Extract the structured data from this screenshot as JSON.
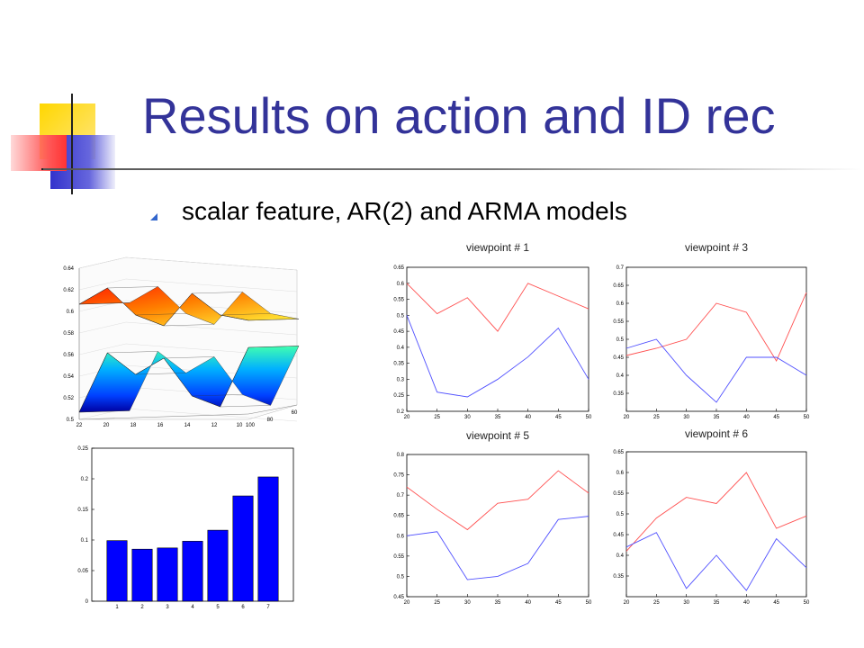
{
  "slide": {
    "title": "Results on action and ID rec",
    "bullet": "scalar feature, AR(2) and ARMA models"
  },
  "colors": {
    "title": "#333399",
    "red_series": "#ff5050",
    "blue_series": "#5050ff",
    "bar": "#0000ff"
  },
  "chart_data": [
    {
      "type": "surface",
      "x_ticks": [
        "22",
        "20",
        "18",
        "16",
        "14",
        "12",
        "10",
        "100"
      ],
      "y_ticks": [
        "80",
        "60"
      ],
      "z_ticks": [
        "0.5",
        "0.52",
        "0.54",
        "0.56",
        "0.58",
        "0.6",
        "0.62",
        "0.64"
      ],
      "zlim": [
        0.5,
        0.64
      ],
      "x": [
        22,
        20,
        18,
        16,
        14,
        12,
        10
      ],
      "upper_surface": [
        0.61,
        0.625,
        0.6,
        0.59,
        0.62,
        0.6,
        0.595
      ],
      "lower_surface": [
        0.51,
        0.565,
        0.545,
        0.56,
        0.525,
        0.515,
        0.57
      ],
      "grid": true
    },
    {
      "type": "bar",
      "categories": [
        "1",
        "2",
        "3",
        "4",
        "5",
        "6",
        "7"
      ],
      "values": [
        0.099,
        0.085,
        0.087,
        0.098,
        0.116,
        0.172,
        0.203
      ],
      "ylim": [
        0,
        0.25
      ],
      "y_ticks": [
        "0",
        "0.05",
        "0.1",
        "0.15",
        "0.2",
        "0.25"
      ]
    },
    {
      "type": "line",
      "title": "viewpoint # 1",
      "x": [
        20,
        25,
        30,
        35,
        40,
        45,
        50
      ],
      "xlim": [
        20,
        50
      ],
      "ylim": [
        0.2,
        0.65
      ],
      "x_ticks": [
        "20",
        "25",
        "30",
        "35",
        "40",
        "45",
        "50"
      ],
      "y_ticks": [
        "0.2",
        "0.25",
        "0.3",
        "0.35",
        "0.4",
        "0.45",
        "0.5",
        "0.55",
        "0.6",
        "0.65"
      ],
      "series": [
        {
          "color": "#ff5050",
          "values": [
            0.6,
            0.505,
            0.555,
            0.45,
            0.6,
            0.56,
            0.52
          ]
        },
        {
          "color": "#5050ff",
          "values": [
            0.5,
            0.26,
            0.245,
            0.3,
            0.37,
            0.46,
            0.3
          ]
        }
      ]
    },
    {
      "type": "line",
      "title": "viewpoint # 3",
      "x": [
        20,
        25,
        30,
        35,
        40,
        45,
        50
      ],
      "xlim": [
        20,
        50
      ],
      "ylim": [
        0.3,
        0.7
      ],
      "x_ticks": [
        "20",
        "25",
        "30",
        "35",
        "40",
        "45",
        "50"
      ],
      "y_ticks": [
        "0.35",
        "0.4",
        "0.45",
        "0.5",
        "0.55",
        "0.6",
        "0.65",
        "0.7"
      ],
      "series": [
        {
          "color": "#ff5050",
          "values": [
            0.455,
            0.475,
            0.5,
            0.6,
            0.575,
            0.44,
            0.63
          ]
        },
        {
          "color": "#5050ff",
          "values": [
            0.475,
            0.5,
            0.4,
            0.325,
            0.45,
            0.45,
            0.4
          ]
        }
      ]
    },
    {
      "type": "line",
      "title": "viewpoint # 5",
      "x": [
        20,
        25,
        30,
        35,
        40,
        45,
        50
      ],
      "xlim": [
        20,
        50
      ],
      "ylim": [
        0.45,
        0.8
      ],
      "x_ticks": [
        "20",
        "25",
        "30",
        "35",
        "40",
        "45",
        "50"
      ],
      "y_ticks": [
        "0.45",
        "0.5",
        "0.55",
        "0.6",
        "0.65",
        "0.7",
        "0.75",
        "0.8"
      ],
      "series": [
        {
          "color": "#ff5050",
          "values": [
            0.72,
            0.665,
            0.615,
            0.68,
            0.69,
            0.76,
            0.705
          ]
        },
        {
          "color": "#5050ff",
          "values": [
            0.6,
            0.61,
            0.492,
            0.5,
            0.532,
            0.64,
            0.648
          ]
        }
      ]
    },
    {
      "type": "line",
      "title": "viewpoint # 6",
      "x": [
        20,
        25,
        30,
        35,
        40,
        45,
        50
      ],
      "xlim": [
        20,
        50
      ],
      "ylim": [
        0.3,
        0.65
      ],
      "x_ticks": [
        "20",
        "25",
        "30",
        "35",
        "40",
        "45",
        "50"
      ],
      "y_ticks": [
        "0.35",
        "0.4",
        "0.45",
        "0.5",
        "0.55",
        "0.6",
        "0.65"
      ],
      "series": [
        {
          "color": "#ff5050",
          "values": [
            0.41,
            0.49,
            0.54,
            0.525,
            0.6,
            0.465,
            0.495
          ]
        },
        {
          "color": "#5050ff",
          "values": [
            0.42,
            0.455,
            0.32,
            0.4,
            0.315,
            0.44,
            0.37
          ]
        }
      ]
    }
  ]
}
